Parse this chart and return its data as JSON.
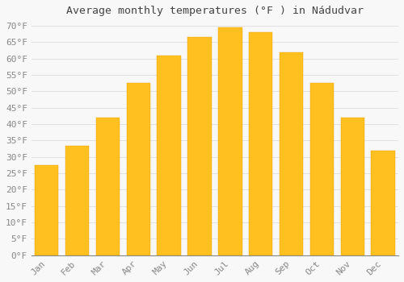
{
  "title": "Average monthly temperatures (°F ) in Nádudvar",
  "months": [
    "Jan",
    "Feb",
    "Mar",
    "Apr",
    "May",
    "Jun",
    "Jul",
    "Aug",
    "Sep",
    "Oct",
    "Nov",
    "Dec"
  ],
  "values": [
    27.5,
    33.5,
    42.0,
    52.5,
    61.0,
    66.5,
    69.5,
    68.0,
    62.0,
    52.5,
    42.0,
    32.0
  ],
  "bar_color_top": "#FFC020",
  "bar_color_bottom": "#FFB000",
  "bar_edge_color": "#E8A000",
  "background_color": "#f8f8f8",
  "grid_color": "#dddddd",
  "ylim": [
    0,
    71
  ],
  "ytick_step": 5,
  "title_fontsize": 9.5,
  "tick_fontsize": 8,
  "label_color": "#888888",
  "title_color": "#444444",
  "bar_width": 0.78
}
